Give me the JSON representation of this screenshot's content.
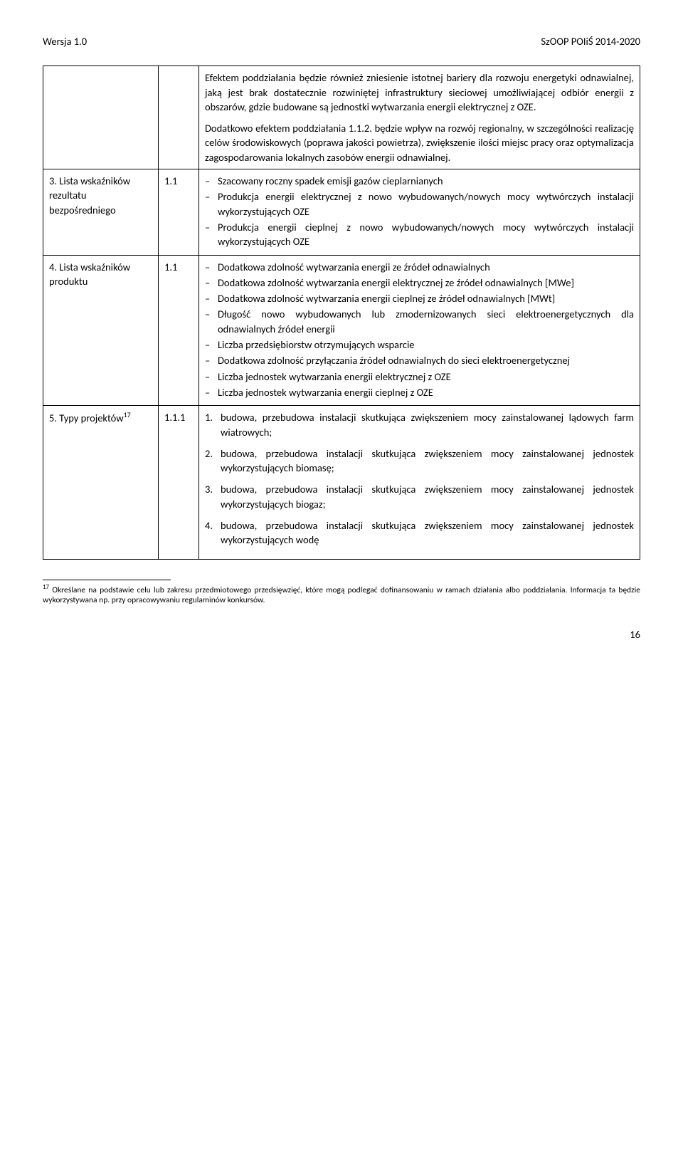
{
  "header": {
    "left": "Wersja 1.0",
    "right": "SzOOP POIiŚ 2014-2020"
  },
  "intro": {
    "p1": "Efektem poddziałania będzie również zniesienie istotnej bariery dla rozwoju energetyki odnawialnej, jaką jest brak dostatecznie rozwiniętej infrastruktury sieciowej umożliwiającej odbiór energii z obszarów, gdzie budowane są jednostki wytwarzania energii elektrycznej z OZE.",
    "p2": "Dodatkowo efektem poddziałania 1.1.2. będzie wpływ na rozwój regionalny, w szczególności realizację celów środowiskowych (poprawa jakości powietrza), zwiększenie ilości miejsc pracy oraz optymalizacja zagospodarowania lokalnych zasobów energii odnawialnej."
  },
  "rows": {
    "r3": {
      "label": "3. Lista wskaźników rezultatu bezpośredniego",
      "num": "1.1",
      "items": [
        "Szacowany roczny spadek emisji gazów cieplarnianych",
        "Produkcja energii elektrycznej z nowo wybudowanych/nowych mocy wytwórczych instalacji wykorzystujących OZE",
        "Produkcja energii cieplnej z nowo wybudowanych/nowych mocy wytwórczych instalacji wykorzystujących OZE"
      ]
    },
    "r4": {
      "label": "4. Lista wskaźników produktu",
      "num": "1.1",
      "items": [
        "Dodatkowa zdolność wytwarzania energii ze źródeł odnawialnych",
        "Dodatkowa zdolność wytwarzania energii elektrycznej ze źródeł odnawialnych [MWe]",
        "Dodatkowa zdolność wytwarzania energii cieplnej ze źródeł odnawialnych [MWt]",
        "Długość nowo wybudowanych lub zmodernizowanych sieci elektroenergetycznych dla odnawialnych źródeł energii",
        "Liczba przedsiębiorstw otrzymujących wsparcie",
        "Dodatkowa zdolność przyłączania źródeł odnawialnych do sieci elektroenergetycznej",
        "Liczba jednostek wytwarzania energii elektrycznej z OZE",
        "Liczba jednostek wytwarzania energii cieplnej z OZE"
      ]
    },
    "r5": {
      "label_pre": "5. Typy projektów",
      "label_sup": "17",
      "num": "1.1.1",
      "items": [
        "budowa, przebudowa instalacji skutkująca zwiększeniem mocy zainstalowanej lądowych farm wiatrowych;",
        "budowa, przebudowa instalacji skutkująca zwiększeniem mocy zainstalowanej jednostek wykorzystujących biomasę;",
        "budowa, przebudowa instalacji skutkująca zwiększeniem mocy zainstalowanej jednostek wykorzystujących biogaz;",
        "budowa, przebudowa instalacji skutkująca zwiększeniem mocy zainstalowanej jednostek wykorzystujących wodę"
      ]
    }
  },
  "footnote": {
    "sup": "17",
    "text": " Określane na podstawie celu lub zakresu przedmiotowego przedsięwzięć, które mogą podlegać dofinansowaniu w ramach działania albo poddziałania. Informacja ta będzie wykorzystywana np. przy opracowywaniu regulaminów konkursów."
  },
  "page_number": "16"
}
